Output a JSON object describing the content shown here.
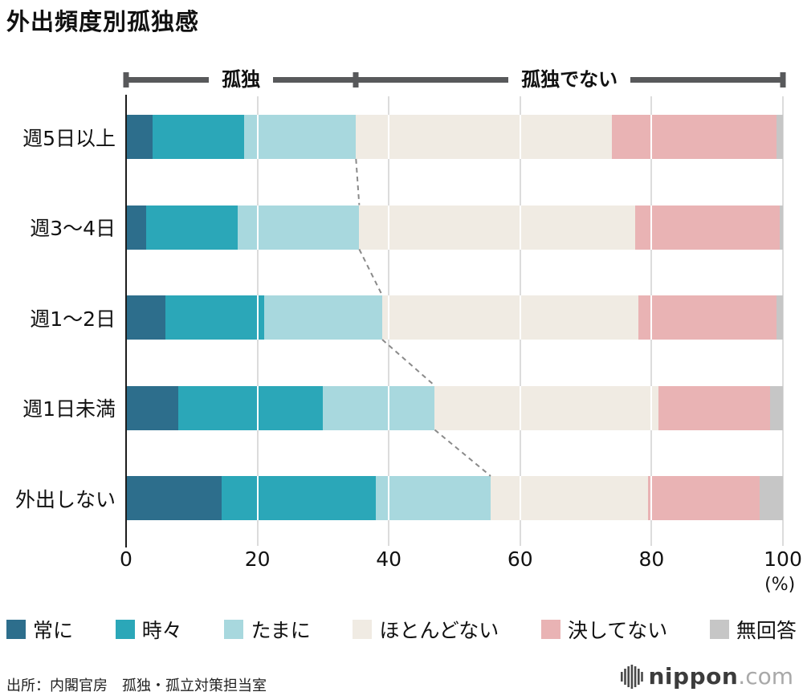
{
  "title": "外出頻度別孤独感",
  "bracket": {
    "left_label": "孤独",
    "right_label": "孤独でない",
    "split_percent": 35
  },
  "chart_data": {
    "type": "bar",
    "orientation": "horizontal",
    "stacked": true,
    "categories": [
      "週5日以上",
      "週3〜4日",
      "週1〜2日",
      "週1日未満",
      "外出しない"
    ],
    "series": [
      {
        "name": "常に",
        "color": "#2d6e8c",
        "values": [
          4,
          3,
          6,
          8,
          14.5
        ]
      },
      {
        "name": "時々",
        "color": "#2ba7b8",
        "values": [
          14,
          14,
          15,
          22,
          23.5
        ]
      },
      {
        "name": "たまに",
        "color": "#a8d8de",
        "values": [
          17,
          18.5,
          18,
          17,
          17.5
        ]
      },
      {
        "name": "ほとんどない",
        "color": "#f0ebe3",
        "values": [
          39,
          42,
          39,
          34,
          24
        ]
      },
      {
        "name": "決してない",
        "color": "#e9b3b4",
        "values": [
          25,
          22,
          21,
          17,
          17
        ]
      },
      {
        "name": "無回答",
        "color": "#c6c6c6",
        "values": [
          1,
          0.5,
          1,
          2,
          3.5
        ]
      }
    ],
    "x_ticks": [
      0,
      20,
      40,
      60,
      80,
      100
    ],
    "x_axis_unit_label": "(%)",
    "xlim": [
      0,
      100
    ],
    "legend_position": "bottom",
    "grid": true
  },
  "source": "出所：内閣官房　孤独・孤立対策担当室",
  "logo": {
    "brand": "nippon",
    "suffix": ".com"
  }
}
